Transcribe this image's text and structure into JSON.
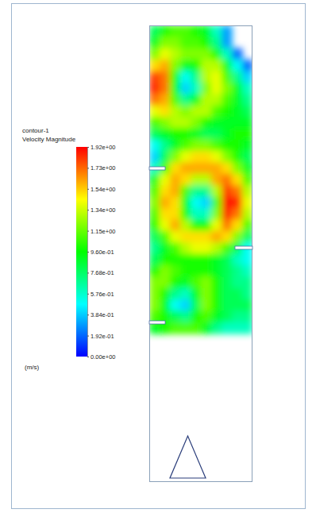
{
  "chart_data": {
    "type": "heatmap",
    "title": "contour-1",
    "colorbar": {
      "label": "Velocity Magnitude",
      "unit": "(m/s)",
      "range": [
        0,
        1.92
      ],
      "ticks": [
        {
          "value": 0,
          "label": "0.00e+00"
        },
        {
          "value": 0.192,
          "label": "1.92e-01"
        },
        {
          "value": 0.384,
          "label": "3.84e-01"
        },
        {
          "value": 0.576,
          "label": "5.76e-01"
        },
        {
          "value": 0.768,
          "label": "7.68e-01"
        },
        {
          "value": 0.96,
          "label": "9.60e-01"
        },
        {
          "value": 1.152,
          "label": "1.15e+00"
        },
        {
          "value": 1.344,
          "label": "1.34e+00"
        },
        {
          "value": 1.536,
          "label": "1.54e+00"
        },
        {
          "value": 1.728,
          "label": "1.73e+00"
        },
        {
          "value": 1.92,
          "label": "1.92e+00"
        }
      ]
    },
    "cells": [
      [
        0.8,
        1.0,
        1.1,
        1.1,
        1.0,
        0.9,
        0.6,
        0.3,
        null,
        null
      ],
      [
        0.9,
        1.2,
        1.2,
        1.1,
        1.1,
        1.0,
        0.7,
        0.3,
        null,
        null
      ],
      [
        1.2,
        1.4,
        1.3,
        1.2,
        1.2,
        1.2,
        1.0,
        0.6,
        0.2,
        null
      ],
      [
        1.5,
        1.6,
        1.2,
        0.9,
        1.0,
        1.3,
        1.3,
        0.9,
        0.5,
        0.2
      ],
      [
        1.8,
        1.7,
        1.0,
        0.5,
        0.7,
        1.3,
        1.4,
        1.1,
        0.7,
        0.4
      ],
      [
        1.85,
        1.7,
        0.9,
        0.4,
        0.6,
        1.2,
        1.4,
        1.2,
        0.9,
        0.6
      ],
      [
        1.7,
        1.6,
        1.1,
        0.7,
        0.9,
        1.3,
        1.3,
        1.1,
        0.9,
        0.7
      ],
      [
        1.4,
        1.5,
        1.3,
        1.2,
        1.3,
        1.3,
        1.1,
        1.0,
        0.9,
        0.8
      ],
      [
        1.1,
        1.2,
        1.3,
        1.3,
        1.2,
        1.0,
        0.9,
        0.9,
        0.9,
        0.9
      ],
      [
        0.8,
        0.9,
        1.0,
        1.0,
        0.9,
        0.8,
        0.8,
        0.9,
        1.0,
        1.0
      ],
      [
        0.5,
        0.7,
        0.9,
        1.1,
        1.2,
        1.2,
        1.1,
        1.0,
        1.0,
        0.9
      ],
      [
        0.4,
        0.8,
        1.2,
        1.4,
        1.5,
        1.5,
        1.4,
        1.2,
        1.0,
        0.8
      ],
      [
        0.6,
        1.1,
        1.5,
        1.6,
        1.6,
        1.6,
        1.6,
        1.5,
        1.2,
        0.9
      ],
      [
        0.9,
        1.4,
        1.6,
        1.5,
        1.3,
        1.3,
        1.6,
        1.7,
        1.5,
        1.1
      ],
      [
        1.1,
        1.5,
        1.6,
        1.1,
        0.7,
        0.7,
        1.3,
        1.8,
        1.7,
        1.3
      ],
      [
        1.2,
        1.6,
        1.5,
        0.9,
        0.5,
        0.4,
        1.1,
        1.9,
        1.85,
        1.4
      ],
      [
        1.1,
        1.5,
        1.5,
        1.0,
        0.6,
        0.6,
        1.2,
        1.85,
        1.7,
        1.3
      ],
      [
        1.0,
        1.4,
        1.6,
        1.3,
        1.0,
        1.0,
        1.4,
        1.7,
        1.5,
        1.1
      ],
      [
        0.8,
        1.1,
        1.4,
        1.5,
        1.5,
        1.5,
        1.6,
        1.5,
        1.2,
        0.8
      ],
      [
        0.7,
        0.9,
        1.1,
        1.3,
        1.4,
        1.4,
        1.3,
        1.1,
        0.8,
        0.5
      ],
      [
        0.8,
        1.0,
        1.0,
        1.0,
        1.0,
        1.0,
        0.9,
        0.8,
        0.6,
        0.5
      ],
      [
        1.0,
        1.2,
        1.1,
        1.0,
        1.0,
        1.0,
        0.9,
        0.8,
        0.7,
        0.6
      ],
      [
        1.2,
        1.2,
        1.0,
        0.9,
        1.1,
        1.2,
        1.0,
        0.8,
        0.7,
        0.7
      ],
      [
        1.2,
        1.0,
        0.7,
        0.6,
        0.9,
        1.2,
        1.0,
        0.8,
        0.8,
        0.7
      ],
      [
        1.2,
        0.9,
        0.5,
        0.4,
        0.8,
        1.2,
        1.0,
        0.8,
        0.8,
        0.8
      ],
      [
        1.1,
        1.0,
        0.8,
        0.7,
        1.0,
        1.1,
        0.9,
        0.8,
        0.7,
        0.7
      ],
      [
        0.9,
        1.0,
        1.1,
        1.1,
        1.1,
        0.9,
        0.7,
        0.6,
        0.6,
        0.6
      ],
      [
        null,
        null,
        null,
        null,
        null,
        null,
        null,
        null,
        null,
        null
      ],
      [
        null,
        null,
        null,
        null,
        null,
        null,
        null,
        null,
        null,
        null
      ],
      [
        null,
        null,
        null,
        null,
        null,
        null,
        null,
        null,
        null,
        null
      ],
      [
        null,
        null,
        null,
        null,
        null,
        null,
        null,
        null,
        null,
        null
      ],
      [
        null,
        null,
        null,
        null,
        null,
        null,
        null,
        null,
        null,
        null
      ],
      [
        null,
        null,
        null,
        null,
        null,
        null,
        null,
        null,
        null,
        null
      ],
      [
        null,
        null,
        null,
        null,
        null,
        null,
        null,
        null,
        null,
        null
      ],
      [
        null,
        null,
        null,
        null,
        null,
        null,
        null,
        null,
        null,
        null
      ],
      [
        null,
        null,
        null,
        null,
        null,
        null,
        null,
        null,
        null,
        null
      ],
      [
        null,
        null,
        null,
        null,
        null,
        null,
        null,
        null,
        null,
        null
      ],
      [
        null,
        null,
        null,
        null,
        null,
        null,
        null,
        null,
        null,
        null
      ],
      [
        null,
        null,
        null,
        null,
        null,
        null,
        null,
        null,
        null,
        null
      ],
      [
        null,
        null,
        null,
        null,
        null,
        null,
        null,
        null,
        null,
        null
      ]
    ]
  }
}
